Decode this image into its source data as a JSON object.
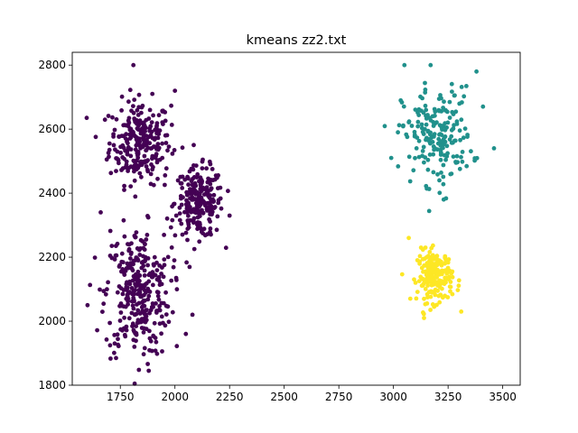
{
  "chart_data": {
    "type": "scatter",
    "title": "kmeans zz2.txt",
    "xlabel": "",
    "ylabel": "",
    "xlim": [
      1530,
      3580
    ],
    "ylim": [
      1800,
      2840
    ],
    "xticks": [
      1750,
      2000,
      2250,
      2500,
      2750,
      3000,
      3250,
      3500
    ],
    "yticks": [
      1800,
      2000,
      2200,
      2400,
      2600,
      2800
    ],
    "xtick_labels": [
      "1750",
      "2000",
      "2250",
      "2500",
      "2750",
      "3000",
      "3250",
      "3500"
    ],
    "ytick_labels": [
      "1800",
      "2000",
      "2200",
      "2400",
      "2600",
      "2800"
    ],
    "grid": false,
    "legend": "none",
    "colors": {
      "cluster_purple": "#440154",
      "cluster_teal": "#21918c",
      "cluster_yellow": "#fde725",
      "axis": "#000000",
      "background": "#ffffff"
    },
    "clusters": [
      {
        "color_key": "cluster_purple",
        "center": [
          1840,
          2560
        ],
        "spread": [
          70,
          65
        ],
        "count": 260
      },
      {
        "color_key": "cluster_purple",
        "center": [
          2110,
          2370
        ],
        "spread": [
          55,
          55
        ],
        "count": 230
      },
      {
        "color_key": "cluster_purple",
        "center": [
          1830,
          2090
        ],
        "spread": [
          75,
          100
        ],
        "count": 320
      },
      {
        "color_key": "cluster_teal",
        "center": [
          3200,
          2580
        ],
        "spread": [
          80,
          75
        ],
        "count": 200
      },
      {
        "color_key": "cluster_yellow",
        "center": [
          3190,
          2140
        ],
        "spread": [
          40,
          40
        ],
        "count": 200
      }
    ],
    "outliers": [
      {
        "color_key": "cluster_purple",
        "x": 1810,
        "y": 2800
      },
      {
        "color_key": "cluster_purple",
        "x": 1880,
        "y": 1845
      },
      {
        "color_key": "cluster_purple",
        "x": 1600,
        "y": 2050
      },
      {
        "color_key": "cluster_purple",
        "x": 2050,
        "y": 1960
      },
      {
        "color_key": "cluster_purple",
        "x": 2000,
        "y": 2720
      },
      {
        "color_key": "cluster_purple",
        "x": 1660,
        "y": 2340
      },
      {
        "color_key": "cluster_purple",
        "x": 2250,
        "y": 2330
      },
      {
        "color_key": "cluster_purple",
        "x": 2080,
        "y": 2020
      },
      {
        "color_key": "cluster_teal",
        "x": 3050,
        "y": 2800
      },
      {
        "color_key": "cluster_teal",
        "x": 3170,
        "y": 2800
      },
      {
        "color_key": "cluster_teal",
        "x": 3380,
        "y": 2780
      },
      {
        "color_key": "cluster_teal",
        "x": 3460,
        "y": 2540
      },
      {
        "color_key": "cluster_teal",
        "x": 3230,
        "y": 2380
      },
      {
        "color_key": "cluster_teal",
        "x": 2990,
        "y": 2510
      },
      {
        "color_key": "cluster_yellow",
        "x": 3070,
        "y": 2260
      },
      {
        "color_key": "cluster_yellow",
        "x": 3310,
        "y": 2030
      },
      {
        "color_key": "cluster_yellow",
        "x": 3140,
        "y": 2010
      }
    ]
  }
}
